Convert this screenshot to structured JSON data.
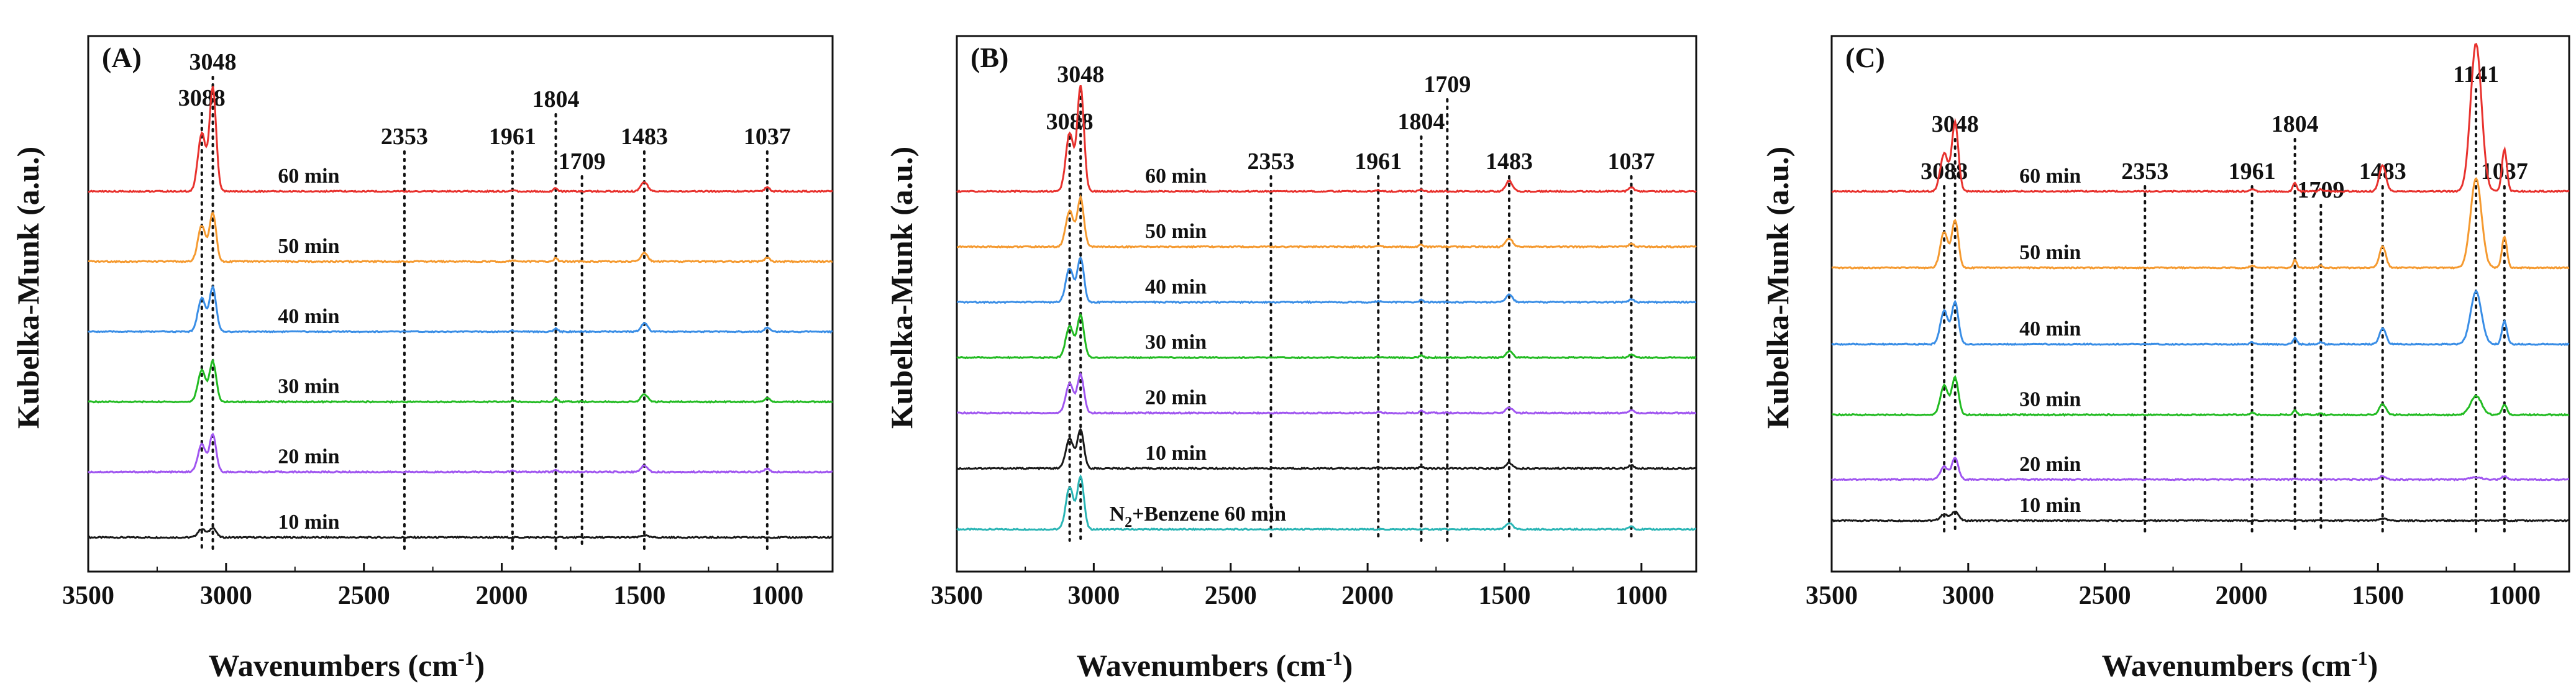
{
  "figure": {
    "ylabel": "Kubelka-Munk (a.u.)",
    "xlabel_main": "Wavenumbers (cm",
    "xlabel_sup": "-1",
    "xlabel_close": ")"
  },
  "chart_data": [
    {
      "type": "line",
      "panel": "(A)",
      "xlim": [
        3500,
        800
      ],
      "xticks": [
        3500,
        3000,
        2500,
        2000,
        1500,
        1000
      ],
      "xlabel": "Wavenumbers (cm-1)",
      "ylabel": "Kubelka-Munk (a.u.)",
      "peaks": [
        {
          "label": "3088",
          "x": 3088
        },
        {
          "label": "3048",
          "x": 3048
        },
        {
          "label": "2353",
          "x": 2353
        },
        {
          "label": "1961",
          "x": 1961
        },
        {
          "label": "1804",
          "x": 1804
        },
        {
          "label": "1709",
          "x": 1709
        },
        {
          "label": "1483",
          "x": 1483
        },
        {
          "label": "1037",
          "x": 1037
        }
      ],
      "series": [
        {
          "name": "10 min",
          "color": "#1a1a1a",
          "offset": 0.0,
          "amps": {
            "3088": 0.08,
            "3048": 0.09,
            "2353": 0.0,
            "1961": 0.0,
            "1804": 0.0,
            "1709": 0.0,
            "1483": 0.02,
            "1037": 0.0,
            "1141": 0.0
          }
        },
        {
          "name": "20 min",
          "color": "#a056f0",
          "offset": 0.7,
          "amps": {
            "3088": 0.26,
            "3048": 0.35,
            "2353": 0.0,
            "1961": 0.01,
            "1804": 0.02,
            "1709": 0.0,
            "1483": 0.06,
            "1037": 0.03,
            "1141": 0.0
          }
        },
        {
          "name": "30 min",
          "color": "#22bb22",
          "offset": 1.45,
          "amps": {
            "3088": 0.3,
            "3048": 0.38,
            "2353": 0.0,
            "1961": 0.01,
            "1804": 0.03,
            "1709": 0.0,
            "1483": 0.07,
            "1037": 0.04,
            "1141": 0.0
          }
        },
        {
          "name": "40 min",
          "color": "#3a8ee6",
          "offset": 2.2,
          "amps": {
            "3088": 0.32,
            "3048": 0.42,
            "2353": 0.0,
            "1961": 0.01,
            "1804": 0.03,
            "1709": 0.0,
            "1483": 0.08,
            "1037": 0.04,
            "1141": 0.0
          }
        },
        {
          "name": "50 min",
          "color": "#f59a30",
          "offset": 2.95,
          "amps": {
            "3088": 0.34,
            "3048": 0.46,
            "2353": 0.0,
            "1961": 0.01,
            "1804": 0.03,
            "1709": 0.0,
            "1483": 0.08,
            "1037": 0.04,
            "1141": 0.0
          }
        },
        {
          "name": "60 min",
          "color": "#e8322e",
          "offset": 3.7,
          "amps": {
            "3088": 0.55,
            "3048": 0.98,
            "2353": 0.0,
            "1961": 0.01,
            "1804": 0.03,
            "1709": 0.0,
            "1483": 0.09,
            "1037": 0.04,
            "1141": 0.0
          }
        }
      ]
    },
    {
      "type": "line",
      "panel": "(B)",
      "xlim": [
        3500,
        800
      ],
      "xticks": [
        3500,
        3000,
        2500,
        2000,
        1500,
        1000
      ],
      "xlabel": "Wavenumbers (cm-1)",
      "ylabel": "Kubelka-Munk (a.u.)",
      "peaks": [
        {
          "label": "3088",
          "x": 3088
        },
        {
          "label": "3048",
          "x": 3048
        },
        {
          "label": "2353",
          "x": 2353
        },
        {
          "label": "1961",
          "x": 1961
        },
        {
          "label": "1804",
          "x": 1804
        },
        {
          "label": "1709",
          "x": 1709
        },
        {
          "label": "1483",
          "x": 1483
        },
        {
          "label": "1037",
          "x": 1037
        }
      ],
      "series": [
        {
          "name": "N",
          "label_sub": "2",
          "label_rest": "+Benzene 60 min",
          "color": "#2ab5b5",
          "offset": 0.0,
          "amps": {
            "3088": 0.4,
            "3048": 0.5,
            "2353": 0.0,
            "1961": 0.0,
            "1804": 0.0,
            "1709": 0.0,
            "1483": 0.06,
            "1037": 0.03,
            "1141": 0.0
          }
        },
        {
          "name": "10 min",
          "color": "#1a1a1a",
          "offset": 0.55,
          "amps": {
            "3088": 0.28,
            "3048": 0.36,
            "2353": 0.0,
            "1961": 0.01,
            "1804": 0.02,
            "1709": 0.0,
            "1483": 0.05,
            "1037": 0.03,
            "1141": 0.0
          }
        },
        {
          "name": "20 min",
          "color": "#a056f0",
          "offset": 1.05,
          "amps": {
            "3088": 0.28,
            "3048": 0.36,
            "2353": 0.0,
            "1961": 0.01,
            "1804": 0.02,
            "1709": 0.0,
            "1483": 0.05,
            "1037": 0.03,
            "1141": 0.0
          }
        },
        {
          "name": "30 min",
          "color": "#22bb22",
          "offset": 1.55,
          "amps": {
            "3088": 0.3,
            "3048": 0.4,
            "2353": 0.0,
            "1961": 0.01,
            "1804": 0.02,
            "1709": 0.0,
            "1483": 0.06,
            "1037": 0.03,
            "1141": 0.0
          }
        },
        {
          "name": "40 min",
          "color": "#3a8ee6",
          "offset": 2.05,
          "amps": {
            "3088": 0.32,
            "3048": 0.42,
            "2353": 0.0,
            "1961": 0.01,
            "1804": 0.02,
            "1709": 0.0,
            "1483": 0.07,
            "1037": 0.03,
            "1141": 0.0
          }
        },
        {
          "name": "50 min",
          "color": "#f59a30",
          "offset": 2.55,
          "amps": {
            "3088": 0.34,
            "3048": 0.46,
            "2353": 0.0,
            "1961": 0.01,
            "1804": 0.02,
            "1709": 0.0,
            "1483": 0.08,
            "1037": 0.03,
            "1141": 0.0
          }
        },
        {
          "name": "60 min",
          "color": "#e8322e",
          "offset": 3.05,
          "amps": {
            "3088": 0.55,
            "3048": 1.0,
            "2353": 0.0,
            "1961": 0.01,
            "1804": 0.02,
            "1709": 0.0,
            "1483": 0.1,
            "1037": 0.04,
            "1141": 0.0
          }
        }
      ]
    },
    {
      "type": "line",
      "panel": "(C)",
      "xlim": [
        3500,
        800
      ],
      "xticks": [
        3500,
        3000,
        2500,
        2000,
        1500,
        1000
      ],
      "xlabel": "Wavenumbers (cm-1)",
      "ylabel": "Kubelka-Munk (a.u.)",
      "peaks": [
        {
          "label": "3088",
          "x": 3088
        },
        {
          "label": "3048",
          "x": 3048
        },
        {
          "label": "2353",
          "x": 2353
        },
        {
          "label": "1961",
          "x": 1961
        },
        {
          "label": "1804",
          "x": 1804
        },
        {
          "label": "1709",
          "x": 1709
        },
        {
          "label": "1483",
          "x": 1483
        },
        {
          "label": "1141",
          "x": 1141
        },
        {
          "label": "1037",
          "x": 1037
        }
      ],
      "series": [
        {
          "name": "10 min",
          "color": "#1a1a1a",
          "offset": 0.0,
          "amps": {
            "3088": 0.06,
            "3048": 0.09,
            "2353": 0.0,
            "1961": 0.0,
            "1804": 0.0,
            "1709": 0.0,
            "1483": 0.02,
            "1037": 0.01,
            "1141": 0.0
          }
        },
        {
          "name": "20 min",
          "color": "#a056f0",
          "offset": 0.35,
          "amps": {
            "3088": 0.12,
            "3048": 0.2,
            "2353": 0.0,
            "1961": 0.0,
            "1804": 0.01,
            "1709": 0.0,
            "1483": 0.03,
            "1037": 0.03,
            "1141": 0.02
          }
        },
        {
          "name": "30 min",
          "color": "#22bb22",
          "offset": 0.9,
          "amps": {
            "3088": 0.28,
            "3048": 0.35,
            "2353": 0.0,
            "1961": 0.02,
            "1804": 0.04,
            "1709": 0.01,
            "1483": 0.1,
            "1037": 0.1,
            "1141": 0.18
          }
        },
        {
          "name": "40 min",
          "color": "#3a8ee6",
          "offset": 1.5,
          "amps": {
            "3088": 0.32,
            "3048": 0.4,
            "2353": 0.0,
            "1961": 0.02,
            "1804": 0.06,
            "1709": 0.02,
            "1483": 0.15,
            "1037": 0.22,
            "1141": 0.5
          }
        },
        {
          "name": "50 min",
          "color": "#f59a30",
          "offset": 2.15,
          "amps": {
            "3088": 0.34,
            "3048": 0.45,
            "2353": 0.0,
            "1961": 0.02,
            "1804": 0.07,
            "1709": 0.02,
            "1483": 0.2,
            "1037": 0.3,
            "1141": 0.85
          }
        },
        {
          "name": "60 min",
          "color": "#e8322e",
          "offset": 2.8,
          "amps": {
            "3088": 0.36,
            "3048": 0.65,
            "2353": 0.0,
            "1961": 0.02,
            "1804": 0.08,
            "1709": 0.02,
            "1483": 0.25,
            "1037": 0.4,
            "1141": 1.4
          }
        }
      ]
    }
  ]
}
